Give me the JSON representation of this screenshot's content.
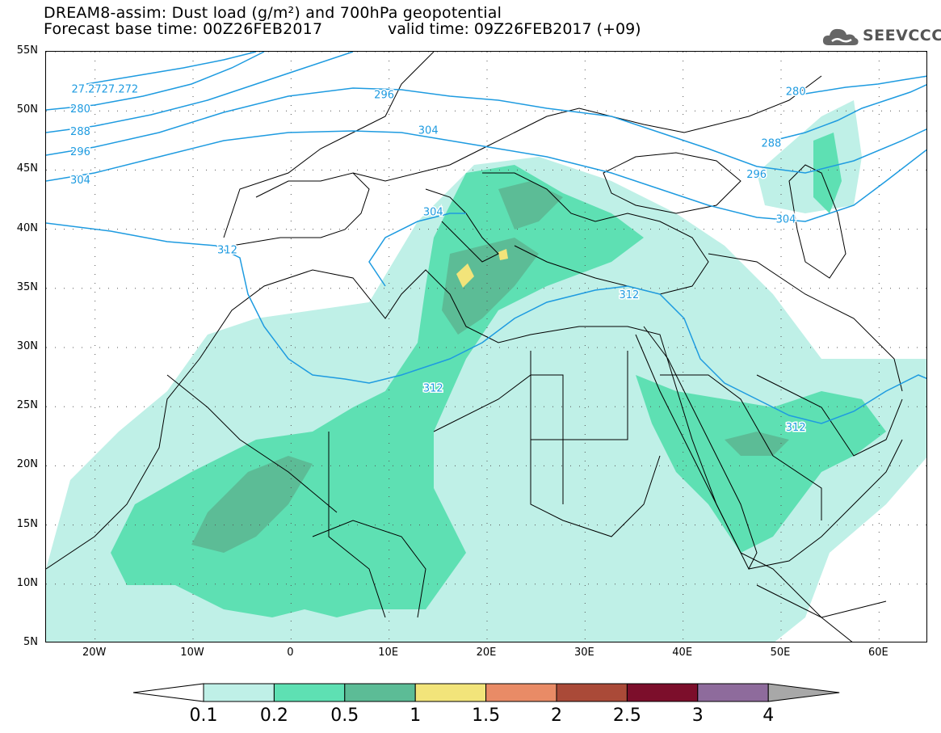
{
  "header": {
    "title_line1": "DREAM8-assim: Dust load (g/m²) and 700hPa geopotential",
    "title_line2": "Forecast base time: 00Z26FEB2017",
    "valid_time": "valid time: 09Z26FEB2017 (+09)",
    "logo_text": "SEEVCCC",
    "logo_icon": "cloud-icon"
  },
  "map": {
    "lon_range": [
      -25,
      65
    ],
    "lat_range": [
      5,
      55
    ],
    "lat_labels": [
      "55N",
      "50N",
      "45N",
      "40N",
      "35N",
      "30N",
      "25N",
      "20N",
      "15N",
      "10N",
      "5N"
    ],
    "lat_values": [
      55,
      50,
      45,
      40,
      35,
      30,
      25,
      20,
      15,
      10,
      5
    ],
    "lon_labels": [
      "20W",
      "10W",
      "0",
      "10E",
      "20E",
      "30E",
      "40E",
      "50E",
      "60E"
    ],
    "lon_values": [
      -20,
      -10,
      0,
      10,
      20,
      30,
      40,
      50,
      60
    ],
    "gridlines": "dotted",
    "contour_color": "#1e9be0",
    "contour_labels": [
      {
        "text": "27.2727.272",
        "lon": -19,
        "lat": 51.8
      },
      {
        "text": "280",
        "lon": -21.5,
        "lat": 50.1
      },
      {
        "text": "288",
        "lon": -21.5,
        "lat": 48.2
      },
      {
        "text": "296",
        "lon": -21.5,
        "lat": 46.5
      },
      {
        "text": "304",
        "lon": -21.5,
        "lat": 44.1
      },
      {
        "text": "296",
        "lon": 9.5,
        "lat": 51.3
      },
      {
        "text": "304",
        "lon": 14,
        "lat": 48.3
      },
      {
        "text": "304",
        "lon": 14.5,
        "lat": 41.4
      },
      {
        "text": "312",
        "lon": -6.5,
        "lat": 38.2
      },
      {
        "text": "312",
        "lon": 14.5,
        "lat": 26.5
      },
      {
        "text": "312",
        "lon": 34.5,
        "lat": 34.4
      },
      {
        "text": "280",
        "lon": 51.5,
        "lat": 51.6
      },
      {
        "text": "288",
        "lon": 49,
        "lat": 47.2
      },
      {
        "text": "296",
        "lon": 47.5,
        "lat": 44.6
      },
      {
        "text": "304",
        "lon": 50.5,
        "lat": 40.8
      },
      {
        "text": "312",
        "lon": 51.5,
        "lat": 23.2
      }
    ]
  },
  "colorbar": {
    "labels": [
      "0.1",
      "0.2",
      "0.5",
      "1",
      "1.5",
      "2",
      "2.5",
      "3",
      "4"
    ],
    "colors": [
      "#bff0e7",
      "#5ee0b3",
      "#5cbc96",
      "#f2e47a",
      "#e98b66",
      "#aa4a38",
      "#7c0e2b",
      "#8e6b9c"
    ],
    "under_color": "#ffffff",
    "over_color": "#a8a8a8"
  }
}
